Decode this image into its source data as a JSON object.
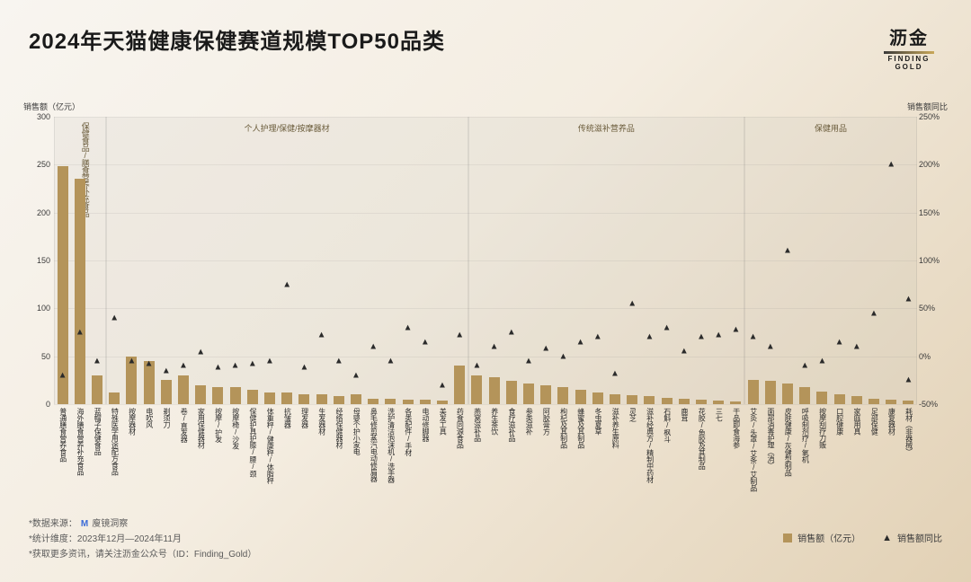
{
  "title": "2024年天猫健康保健赛道规模TOP50品类",
  "brand": {
    "cn": "沥金",
    "en": "FINDING GOLD"
  },
  "axis": {
    "left_title": "销售额（亿元）",
    "right_title": "销售额同比",
    "left_max": 300,
    "left_step": 50,
    "right_min": -50,
    "right_max": 250,
    "right_step": 50
  },
  "colors": {
    "bar": "#b4945a",
    "region_bg": "rgba(180,180,170,0.12)"
  },
  "legend": {
    "bar": "销售额（亿元）",
    "tri": "销售额同比"
  },
  "regions": [
    {
      "label": "保健食品/膳食营养补充食品",
      "from": 0,
      "to": 3,
      "narrow": true
    },
    {
      "label": "个人护理/保健/按摩器材",
      "from": 3,
      "to": 24
    },
    {
      "label": "传统滋补营养品",
      "from": 24,
      "to": 40
    },
    {
      "label": "保健用品",
      "from": 40,
      "to": 50
    }
  ],
  "categories": [
    "普通膳食营养食品",
    "海外膳食营养补充食品",
    "蓝帽子保健食品",
    "特殊医学用途配方食品",
    "按摩器材",
    "电吹风",
    "剃须刀",
    "卷/直发器",
    "家用保健器材",
    "按摩/护发",
    "按摩椅/沙发",
    "保健护具护膝/腰/颈",
    "体重秤/健康秤/体脂秤",
    "抗皱器",
    "理发器",
    "生发器材",
    "经络保健器材",
    "母婴个护小家电",
    "鼻毛修剪蒸汽电动修眉器",
    "洗护清洁泡沫机/洗手器",
    "各类配件/手材",
    "电动修脚器",
    "美发工具",
    "药食同源食品",
    "燕窝滋补品",
    "养生茶饮",
    "食疗滋补品",
    "参类滋补",
    "阿胶膏方",
    "枸杞及其制品",
    "蜂蜜及其制品",
    "冬虫夏草",
    "滋补养生原料",
    "灵芝",
    "滋补经典方/精制中药材",
    "石斛/枫斗",
    "鹿茸",
    "花胶/鱼胶及其制品",
    "三七",
    "干品即食海参",
    "艾灸/头罩/艾条/艾制品",
    "面部消毒护理（消）",
    "皮肤健康/灰健型制品",
    "呼吸制剂疗/氧机",
    "按摩刮疗刀贩",
    "口腔健康",
    "家庭用具",
    "足部保健",
    "康复器材",
    "耗材（非器械）"
  ],
  "bars": [
    248,
    235,
    30,
    12,
    50,
    45,
    25,
    30,
    20,
    18,
    18,
    15,
    12,
    12,
    10,
    10,
    8,
    10,
    6,
    6,
    5,
    5,
    4,
    40,
    30,
    28,
    24,
    22,
    20,
    18,
    15,
    12,
    10,
    9,
    8,
    7,
    6,
    5,
    4,
    3,
    25,
    24,
    22,
    18,
    13,
    10,
    8,
    6,
    5,
    4
  ],
  "yoy": [
    -20,
    25,
    -5,
    40,
    -5,
    -8,
    -15,
    -10,
    4,
    -12,
    -10,
    -8,
    -5,
    75,
    -12,
    22,
    -5,
    -20,
    10,
    -5,
    30,
    15,
    -30,
    22,
    -10,
    10,
    25,
    -5,
    8,
    0,
    15,
    20,
    -18,
    55,
    20,
    30,
    5,
    20,
    22,
    28,
    20,
    10,
    110,
    -10,
    -5,
    15,
    10,
    45,
    200,
    60
  ],
  "yoy_extra": {
    "index": 49,
    "value": -25
  },
  "footer": {
    "src_label": "*数据来源：",
    "src_name": "廋镜洞察",
    "dim": "*统计维度：2023年12月—2024年11月",
    "follow": "*获取更多资讯，请关注沥金公众号（ID：Finding_Gold）"
  }
}
